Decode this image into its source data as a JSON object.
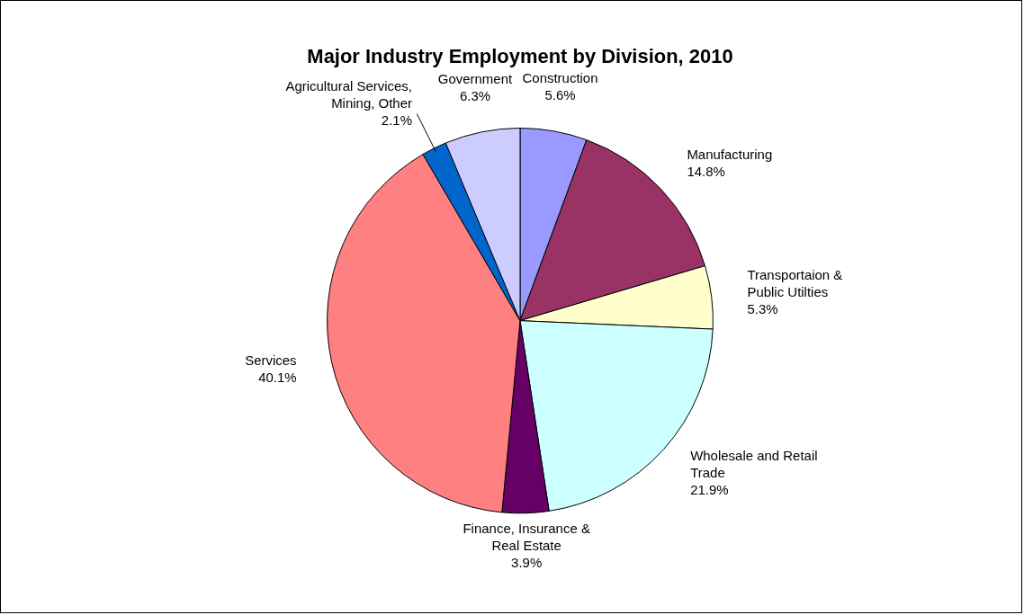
{
  "chart_data": {
    "type": "pie",
    "title": "Major Industry Employment by Division, 2010",
    "categories": [
      "Construction",
      "Manufacturing",
      "Transportaion & Public Utilties",
      "Wholesale and Retail Trade",
      "Finance, Insurance & Real Estate",
      "Services",
      "Agricultural Services, Mining, Other",
      "Government"
    ],
    "values": [
      5.6,
      14.8,
      5.3,
      21.9,
      3.9,
      40.1,
      2.1,
      6.3
    ],
    "value_labels": [
      "5.6%",
      "14.8%",
      "5.3%",
      "21.9%",
      "3.9%",
      "40.1%",
      "2.1%",
      "6.3%"
    ],
    "colors": [
      "#9999ff",
      "#993366",
      "#ffffcc",
      "#ccffff",
      "#660066",
      "#ff8080",
      "#0066cc",
      "#ccccff"
    ],
    "legend": false
  }
}
